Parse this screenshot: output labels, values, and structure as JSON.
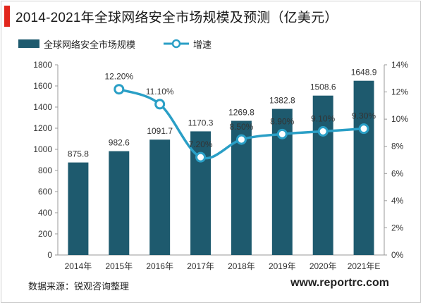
{
  "title": "2014-2021年全球网络安全市场规模及预测（亿美元）",
  "legend": {
    "bar_label": "全球网络安全市场规模",
    "line_label": "增速"
  },
  "source": "数据来源：锐观咨询整理",
  "website": "www.reportrc.com",
  "colors": {
    "bar": "#1e5a6e",
    "line": "#2a9fc6",
    "accent": "#e2261c"
  },
  "chart_data": {
    "type": "bar+line",
    "categories": [
      "2014年",
      "2015年",
      "2016年",
      "2017年",
      "2018年",
      "2019年",
      "2020年",
      "2021年E"
    ],
    "series": [
      {
        "name": "全球网络安全市场规模",
        "type": "bar",
        "axis": "left",
        "values": [
          875.8,
          982.6,
          1091.7,
          1170.3,
          1269.8,
          1382.8,
          1508.6,
          1648.9
        ],
        "labels": [
          "875.8",
          "982.6",
          "1091.7",
          "1170.3",
          "1269.8",
          "1382.8",
          "1508.6",
          "1648.9"
        ]
      },
      {
        "name": "增速",
        "type": "line",
        "axis": "right",
        "values": [
          null,
          12.2,
          11.1,
          7.2,
          8.5,
          8.9,
          9.1,
          9.3
        ],
        "labels": [
          "",
          "12.20%",
          "11.10%",
          "7.20%",
          "8.50%",
          "8.90%",
          "9.10%",
          "9.30%"
        ]
      }
    ],
    "y_left": {
      "min": 0,
      "max": 1800,
      "step": 200,
      "ticks": [
        "0",
        "200",
        "400",
        "600",
        "800",
        "1000",
        "1200",
        "1400",
        "1600",
        "1800"
      ]
    },
    "y_right": {
      "min": 0,
      "max": 14,
      "step": 2,
      "ticks": [
        "0%",
        "2%",
        "4%",
        "6%",
        "8%",
        "10%",
        "12%",
        "14%"
      ]
    },
    "grid": false,
    "legend_position": "top-left"
  }
}
